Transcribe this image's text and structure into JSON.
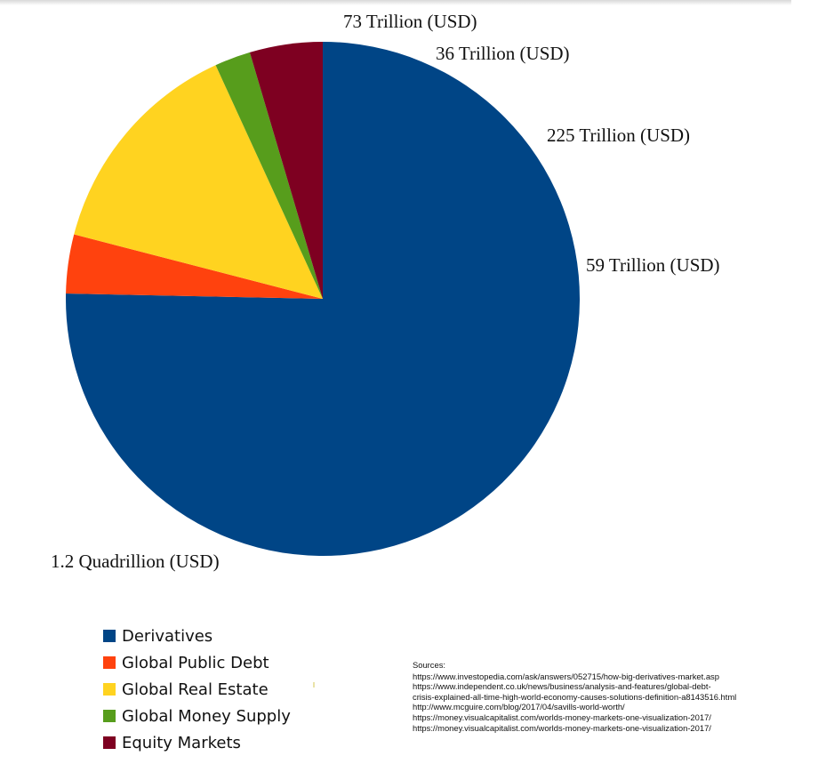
{
  "chart_data": {
    "type": "pie",
    "title": "",
    "series": [
      {
        "name": "Derivatives",
        "value": 1200,
        "label": "1.2 Quadrillion (USD)",
        "color": "#004586"
      },
      {
        "name": "Global Public Debt",
        "value": 59,
        "label": "59 Trillion (USD)",
        "color": "#ff420e"
      },
      {
        "name": "Global Real Estate",
        "value": 225,
        "label": "225 Trillion (USD)",
        "color": "#ffd320"
      },
      {
        "name": "Global Money Supply",
        "value": 36,
        "label": "36 Trillion (USD)",
        "color": "#579d1c"
      },
      {
        "name": "Equity Markets",
        "value": 73,
        "label": "73 Trillion (USD)",
        "color": "#7e0021"
      }
    ],
    "value_unit": "Trillion (USD)",
    "legend_position": "bottom-left"
  },
  "sources": {
    "title": "Sources:",
    "lines": [
      "https://www.investopedia.com/ask/answers/052715/how-big-derivatives-market.asp",
      "https://www.independent.co.uk/news/business/analysis-and-features/global-debt-",
      "crisis-explained-all-time-high-world-economy-causes-solutions-definition-a8143516.html",
      "http://www.mcguire.com/blog/2017/04/savills-world-worth/",
      "https://money.visualcapitalist.com/worlds-money-markets-one-visualization-2017/",
      "https://money.visualcapitalist.com/worlds-money-markets-one-visualization-2017/"
    ]
  }
}
